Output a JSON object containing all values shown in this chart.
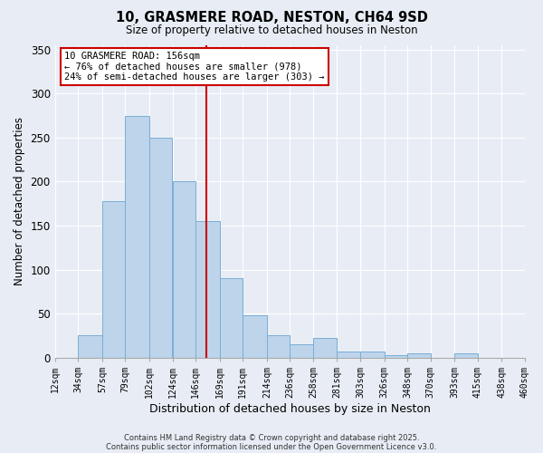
{
  "title": "10, GRASMERE ROAD, NESTON, CH64 9SD",
  "subtitle": "Size of property relative to detached houses in Neston",
  "xlabel": "Distribution of detached houses by size in Neston",
  "ylabel": "Number of detached properties",
  "bar_color": "#bdd4eb",
  "bar_edge_color": "#7aaed4",
  "background_color": "#e8edf5",
  "grid_color": "#ffffff",
  "bins": [
    12,
    34,
    57,
    79,
    102,
    124,
    146,
    169,
    191,
    214,
    236,
    258,
    281,
    303,
    326,
    348,
    370,
    393,
    415,
    438,
    460
  ],
  "counts": [
    0,
    25,
    178,
    275,
    250,
    200,
    155,
    90,
    48,
    25,
    15,
    22,
    7,
    7,
    3,
    5,
    0,
    5,
    0,
    0
  ],
  "tick_labels": [
    "12sqm",
    "34sqm",
    "57sqm",
    "79sqm",
    "102sqm",
    "124sqm",
    "146sqm",
    "169sqm",
    "191sqm",
    "214sqm",
    "236sqm",
    "258sqm",
    "281sqm",
    "303sqm",
    "326sqm",
    "348sqm",
    "370sqm",
    "393sqm",
    "415sqm",
    "438sqm",
    "460sqm"
  ],
  "vline_x": 156,
  "vline_color": "#cc0000",
  "ylim": [
    0,
    355
  ],
  "annotation_title": "10 GRASMERE ROAD: 156sqm",
  "annotation_line1": "← 76% of detached houses are smaller (978)",
  "annotation_line2": "24% of semi-detached houses are larger (303) →",
  "annotation_box_color": "#ffffff",
  "annotation_box_edge": "#cc0000",
  "footnote1": "Contains HM Land Registry data © Crown copyright and database right 2025.",
  "footnote2": "Contains public sector information licensed under the Open Government Licence v3.0."
}
